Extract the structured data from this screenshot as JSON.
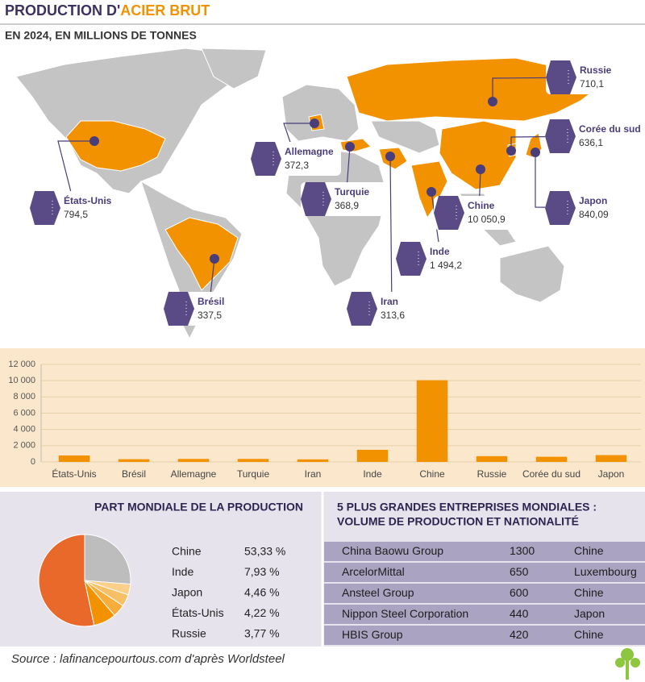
{
  "header": {
    "title_part1": "PRODUCTION D'",
    "title_part2": "ACIER BRUT",
    "subtitle": "EN 2024, EN MILLIONS DE TONNES"
  },
  "chart_data": [
    {
      "type": "bar",
      "categories": [
        "États-Unis",
        "Brésil",
        "Allemagne",
        "Turquie",
        "Iran",
        "Inde",
        "Chine",
        "Russie",
        "Corée du sud",
        "Japon"
      ],
      "values": [
        794.5,
        337.5,
        372.3,
        368.9,
        313.6,
        1494.2,
        10050.9,
        710.1,
        636.1,
        840.09
      ],
      "value_labels": [
        "794,5",
        "337,5",
        "372,3",
        "368,9",
        "313,6",
        "1 494,2",
        "10 050,9",
        "710,1",
        "636,1",
        "840,09"
      ],
      "color": "#f39200",
      "ylim": [
        0,
        12000
      ],
      "yticks": [
        0,
        {
          "value": 2000,
          "label": "2 000"
        },
        {
          "value": 4000,
          "label": "4 000"
        },
        {
          "value": 6000,
          "label": "6 000"
        },
        {
          "value": 8000,
          "label": "8 000"
        },
        {
          "value": 10000,
          "label": "10 000"
        },
        {
          "value": 12000,
          "label": "12 000"
        }
      ],
      "grid": true
    },
    {
      "type": "pie",
      "title": "PART MONDIALE DE LA PRODUCTION",
      "categories": [
        "Chine",
        "Inde",
        "Japon",
        "États-Unis",
        "Russie"
      ],
      "values": [
        53.33,
        7.93,
        4.46,
        4.22,
        3.77
      ],
      "value_labels": [
        "53,33 %",
        "7,93 %",
        "4,46 %",
        "4,22 %",
        "3,77 %"
      ],
      "colors": [
        "#e8692a",
        "#f39200",
        "#f6ad3c",
        "#f8c066",
        "#fad08a"
      ]
    }
  ],
  "table": {
    "title_line1": "5 PLUS GRANDES ENTREPRISES MONDIALES :",
    "title_line2": "VOLUME DE PRODUCTION ET NATIONALITÉ",
    "rows": [
      [
        "China Baowu Group",
        "1300",
        "Chine"
      ],
      [
        "ArcelorMittal",
        "650",
        "Luxembourg"
      ],
      [
        "Ansteel Group",
        "600",
        "Chine"
      ],
      [
        "Nippon Steel Corporation",
        "440",
        "Japon"
      ],
      [
        "HBIS Group",
        "420",
        "Chine"
      ]
    ]
  },
  "source": "Source : lafinancepourtous.com d'après Worldsteel"
}
